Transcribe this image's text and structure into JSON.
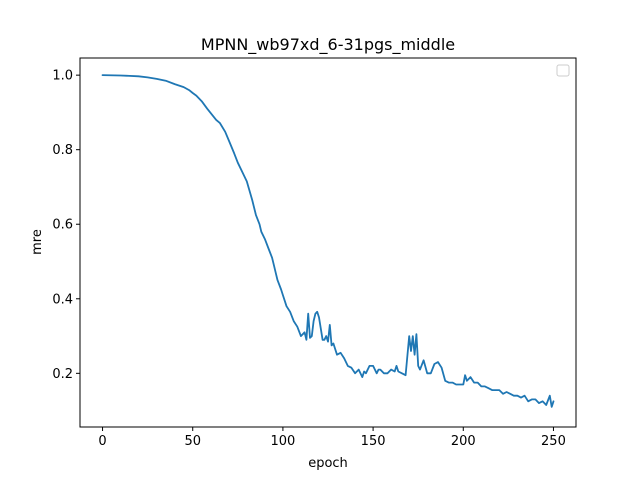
{
  "chart_data": {
    "type": "line",
    "title": "MPNN_wb97xd_6-31pgs_middle",
    "xlabel": "epoch",
    "ylabel": "mre",
    "xlim": [
      -12.5,
      262.5
    ],
    "ylim": [
      0.056,
      1.046
    ],
    "xticks": [
      0,
      50,
      100,
      150,
      200,
      250
    ],
    "yticks": [
      0.2,
      0.4,
      0.6,
      0.8,
      1.0
    ],
    "xtick_labels": [
      "0",
      "50",
      "100",
      "150",
      "200",
      "250"
    ],
    "ytick_labels": [
      "0.2",
      "0.4",
      "0.6",
      "0.8",
      "1.0"
    ],
    "grid": false,
    "legend": {
      "position": "top-right",
      "entries": []
    },
    "line_color": "#1f77b4",
    "series": [
      {
        "x": [
          0,
          10,
          20,
          25,
          30,
          35,
          40,
          45,
          48,
          50,
          52,
          55,
          58,
          60,
          63,
          65,
          68,
          70,
          73,
          75,
          78,
          80,
          83,
          85,
          87,
          88,
          90,
          92,
          94,
          95,
          96,
          97,
          99,
          100,
          102,
          104,
          106,
          108,
          110,
          112,
          113,
          114,
          115,
          116,
          117,
          118,
          119,
          120,
          122,
          123,
          124,
          125,
          126,
          127,
          128,
          130,
          132,
          134,
          136,
          138,
          140,
          142,
          144,
          145,
          146,
          148,
          150,
          152,
          153,
          154,
          156,
          158,
          160,
          162,
          163,
          164,
          166,
          168,
          170,
          171,
          172,
          173,
          174,
          175,
          176,
          178,
          180,
          182,
          184,
          186,
          188,
          190,
          192,
          194,
          196,
          198,
          200,
          201,
          202,
          204,
          206,
          208,
          210,
          212,
          214,
          216,
          218,
          220,
          222,
          224,
          226,
          228,
          230,
          232,
          234,
          236,
          238,
          240,
          242,
          244,
          246,
          248,
          249,
          250
        ],
        "y": [
          1.0,
          0.999,
          0.997,
          0.994,
          0.99,
          0.985,
          0.976,
          0.968,
          0.96,
          0.952,
          0.945,
          0.93,
          0.91,
          0.898,
          0.88,
          0.872,
          0.848,
          0.825,
          0.79,
          0.765,
          0.735,
          0.715,
          0.665,
          0.625,
          0.6,
          0.58,
          0.56,
          0.535,
          0.51,
          0.49,
          0.47,
          0.45,
          0.425,
          0.41,
          0.38,
          0.365,
          0.34,
          0.325,
          0.3,
          0.31,
          0.29,
          0.36,
          0.295,
          0.3,
          0.34,
          0.36,
          0.365,
          0.35,
          0.29,
          0.29,
          0.3,
          0.285,
          0.33,
          0.275,
          0.28,
          0.25,
          0.255,
          0.24,
          0.22,
          0.215,
          0.2,
          0.21,
          0.19,
          0.205,
          0.2,
          0.22,
          0.22,
          0.2,
          0.21,
          0.21,
          0.2,
          0.2,
          0.21,
          0.205,
          0.22,
          0.205,
          0.2,
          0.195,
          0.3,
          0.26,
          0.3,
          0.25,
          0.305,
          0.22,
          0.21,
          0.235,
          0.2,
          0.2,
          0.225,
          0.23,
          0.215,
          0.18,
          0.175,
          0.175,
          0.17,
          0.17,
          0.17,
          0.195,
          0.18,
          0.19,
          0.175,
          0.175,
          0.165,
          0.165,
          0.16,
          0.155,
          0.155,
          0.155,
          0.145,
          0.15,
          0.145,
          0.14,
          0.14,
          0.135,
          0.14,
          0.125,
          0.13,
          0.13,
          0.12,
          0.125,
          0.115,
          0.14,
          0.11,
          0.125
        ]
      }
    ]
  }
}
